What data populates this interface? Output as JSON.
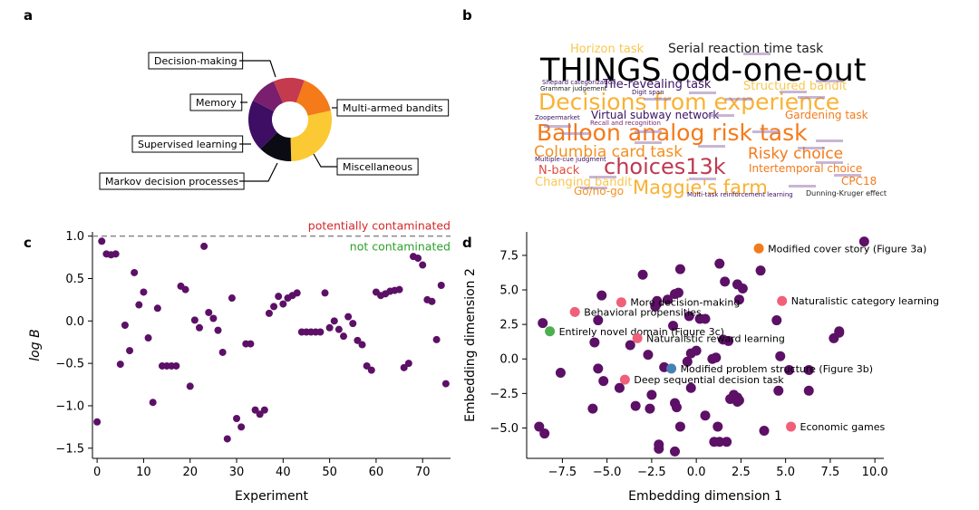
{
  "panels": {
    "a": "a",
    "b": "b",
    "c": "c",
    "d": "d"
  },
  "chart_data": [
    {
      "type": "pie",
      "panel": "a",
      "style": "donut",
      "slices": [
        {
          "label": "Decision-making",
          "value": 16,
          "color": "#f47a1a"
        },
        {
          "label": "Multi-armed bandits",
          "value": 28,
          "color": "#fac933"
        },
        {
          "label": "Miscellaneous",
          "value": 13,
          "color": "#0b0b14"
        },
        {
          "label": "Markov decision processes",
          "value": 20,
          "color": "#3d0e63"
        },
        {
          "label": "Supervised learning",
          "value": 11,
          "color": "#7a1f6d"
        },
        {
          "label": "Memory",
          "value": 12,
          "color": "#c53a4c"
        }
      ]
    },
    {
      "type": "wordcloud",
      "panel": "b",
      "words": [
        {
          "text": "Horizon task",
          "color": "#f9c74f"
        },
        {
          "text": "Serial reaction time task",
          "color": "#222222"
        },
        {
          "text": "THINGS odd-one-out",
          "color": "#000000"
        },
        {
          "text": "Tile-revealing task",
          "color": "#3b1062"
        },
        {
          "text": "Structured bandit",
          "color": "#f9c74f"
        },
        {
          "text": "Decisions from experience",
          "color": "#f9b233"
        },
        {
          "text": "Virtual subway network",
          "color": "#3b1062"
        },
        {
          "text": "Gardening task",
          "color": "#f47a1a"
        },
        {
          "text": "Balloon analog risk task",
          "color": "#f47a1a"
        },
        {
          "text": "Columbia card task",
          "color": "#f4901e"
        },
        {
          "text": "Risky choice",
          "color": "#f47a1a"
        },
        {
          "text": "choices13k",
          "color": "#bf3a52"
        },
        {
          "text": "Intertemporal choice",
          "color": "#f47a1a"
        },
        {
          "text": "N-back",
          "color": "#e14b3c"
        },
        {
          "text": "CPC18",
          "color": "#f47a1a"
        },
        {
          "text": "Changing bandit",
          "color": "#f9c74f"
        },
        {
          "text": "Maggie's farm",
          "color": "#f9b233"
        },
        {
          "text": "Go/no-go",
          "color": "#f4901e"
        },
        {
          "text": "Dunning-Kruger effect",
          "color": "#222222"
        },
        {
          "text": "Multi-task reinforcement learning",
          "color": "#3b1062"
        },
        {
          "text": "Grammar judgement",
          "color": "#222222"
        },
        {
          "text": "Shepard categorization",
          "color": "#3b1062"
        },
        {
          "text": "Digit span",
          "color": "#3b1062"
        },
        {
          "text": "Zoopermarket",
          "color": "#3b1062"
        },
        {
          "text": "Recall and recognition",
          "color": "#7a1f6d"
        },
        {
          "text": "Multiple-cue judgment",
          "color": "#3b1062"
        }
      ]
    },
    {
      "type": "scatter",
      "panel": "c",
      "xlabel": "Experiment",
      "ylabel": "log B",
      "xlim": [
        -1,
        76
      ],
      "ylim": [
        -1.62,
        1.05
      ],
      "xticks": [
        0,
        10,
        20,
        30,
        40,
        50,
        60,
        70
      ],
      "yticks": [
        1.0,
        0.5,
        0.0,
        -0.5,
        -1.0,
        -1.5
      ],
      "ytick_labels": [
        "1.0",
        "0.5",
        "0.0",
        "−0.5",
        "−1.0",
        "−1.5"
      ],
      "threshold": 1.0,
      "threshold_label_above": "potentially contaminated",
      "threshold_label_below": "not contaminated",
      "color": "#5c1066",
      "points": [
        [
          0,
          -1.19
        ],
        [
          1,
          0.94
        ],
        [
          2,
          0.79
        ],
        [
          3,
          0.78
        ],
        [
          4,
          0.79
        ],
        [
          5,
          -0.51
        ],
        [
          6,
          -0.05
        ],
        [
          7,
          -0.35
        ],
        [
          8,
          0.57
        ],
        [
          9,
          0.19
        ],
        [
          10,
          0.34
        ],
        [
          11,
          -0.2
        ],
        [
          12,
          -0.96
        ],
        [
          13,
          0.15
        ],
        [
          14,
          -0.53
        ],
        [
          15,
          -0.53
        ],
        [
          16,
          -0.53
        ],
        [
          17,
          -0.53
        ],
        [
          18,
          0.41
        ],
        [
          19,
          0.37
        ],
        [
          20,
          -0.77
        ],
        [
          21,
          0.01
        ],
        [
          22,
          -0.08
        ],
        [
          23,
          0.88
        ],
        [
          24,
          0.1
        ],
        [
          25,
          0.03
        ],
        [
          26,
          -0.11
        ],
        [
          27,
          -0.37
        ],
        [
          28,
          -1.39
        ],
        [
          29,
          0.27
        ],
        [
          30,
          -1.15
        ],
        [
          31,
          -1.25
        ],
        [
          32,
          -0.27
        ],
        [
          33,
          -0.27
        ],
        [
          34,
          -1.05
        ],
        [
          35,
          -1.1
        ],
        [
          36,
          -1.05
        ],
        [
          37,
          0.09
        ],
        [
          38,
          0.17
        ],
        [
          39,
          0.29
        ],
        [
          40,
          0.2
        ],
        [
          41,
          0.27
        ],
        [
          42,
          0.3
        ],
        [
          43,
          0.33
        ],
        [
          44,
          -0.13
        ],
        [
          45,
          -0.13
        ],
        [
          46,
          -0.13
        ],
        [
          47,
          -0.13
        ],
        [
          48,
          -0.13
        ],
        [
          49,
          0.33
        ],
        [
          50,
          -0.08
        ],
        [
          51,
          0.0
        ],
        [
          52,
          -0.1
        ],
        [
          53,
          -0.18
        ],
        [
          54,
          0.05
        ],
        [
          55,
          -0.03
        ],
        [
          56,
          -0.23
        ],
        [
          57,
          -0.28
        ],
        [
          58,
          -0.53
        ],
        [
          59,
          -0.58
        ],
        [
          60,
          0.34
        ],
        [
          61,
          0.3
        ],
        [
          62,
          0.32
        ],
        [
          63,
          0.35
        ],
        [
          64,
          0.36
        ],
        [
          65,
          0.37
        ],
        [
          66,
          -0.55
        ],
        [
          67,
          -0.5
        ],
        [
          68,
          0.76
        ],
        [
          69,
          0.74
        ],
        [
          70,
          0.66
        ],
        [
          71,
          0.25
        ],
        [
          72,
          0.23
        ],
        [
          73,
          -0.22
        ],
        [
          74,
          0.42
        ],
        [
          75,
          -0.74
        ]
      ]
    },
    {
      "type": "scatter",
      "panel": "d",
      "xlabel": "Embedding dimension 1",
      "ylabel": "Embedding dimension 2",
      "xlim": [
        -9.5,
        10.5
      ],
      "ylim": [
        -7.2,
        9.2
      ],
      "xticks": [
        -7.5,
        -5.0,
        -2.5,
        0.0,
        2.5,
        5.0,
        7.5,
        10.0
      ],
      "xtick_labels": [
        "−7.5",
        "−5.0",
        "−2.5",
        "0.0",
        "2.5",
        "5.0",
        "7.5",
        "10.0"
      ],
      "yticks": [
        7.5,
        5.0,
        2.5,
        0.0,
        -2.5,
        -5.0
      ],
      "ytick_labels": [
        "7.5",
        "5.0",
        "2.5",
        "0.0",
        "−2.5",
        "−5.0"
      ],
      "base_color": "#5c1066",
      "points": [
        [
          9.4,
          8.5
        ],
        [
          3.6,
          6.4
        ],
        [
          1.3,
          6.9
        ],
        [
          1.6,
          5.6
        ],
        [
          2.3,
          5.4
        ],
        [
          2.6,
          5.1
        ],
        [
          2.4,
          4.3
        ],
        [
          -0.9,
          6.5
        ],
        [
          -3.0,
          6.1
        ],
        [
          -5.3,
          4.6
        ],
        [
          -1.2,
          4.7
        ],
        [
          -1.0,
          4.8
        ],
        [
          -1.6,
          4.3
        ],
        [
          -2.2,
          4.0
        ],
        [
          -2.2,
          4.2
        ],
        [
          -2.3,
          3.8
        ],
        [
          -0.4,
          3.1
        ],
        [
          0.2,
          2.9
        ],
        [
          0.5,
          2.9
        ],
        [
          -1.3,
          2.4
        ],
        [
          1.5,
          1.4
        ],
        [
          1.8,
          1.3
        ],
        [
          -5.5,
          2.8
        ],
        [
          -8.6,
          2.6
        ],
        [
          -3.7,
          1.0
        ],
        [
          -5.7,
          1.2
        ],
        [
          -2.7,
          0.3
        ],
        [
          1.1,
          0.1
        ],
        [
          0.9,
          0.0
        ],
        [
          4.7,
          0.2
        ],
        [
          5.2,
          -0.8
        ],
        [
          6.3,
          -0.8
        ],
        [
          -5.5,
          -0.7
        ],
        [
          -7.6,
          -1.0
        ],
        [
          -5.2,
          -1.6
        ],
        [
          -4.3,
          -2.1
        ],
        [
          -1.8,
          -0.6
        ],
        [
          -0.3,
          -2.1
        ],
        [
          -2.5,
          -2.6
        ],
        [
          -3.4,
          -3.4
        ],
        [
          -2.6,
          -3.6
        ],
        [
          -1.2,
          -3.2
        ],
        [
          -1.1,
          -3.5
        ],
        [
          2.1,
          -2.6
        ],
        [
          1.9,
          -2.9
        ],
        [
          2.3,
          -2.8
        ],
        [
          2.4,
          -3.0
        ],
        [
          4.6,
          -2.3
        ],
        [
          6.3,
          -2.3
        ],
        [
          4.5,
          2.8
        ],
        [
          7.7,
          1.5
        ],
        [
          8.0,
          2.0
        ],
        [
          -5.8,
          -3.6
        ],
        [
          -8.8,
          -4.9
        ],
        [
          -8.5,
          -5.4
        ],
        [
          -0.9,
          -4.9
        ],
        [
          1.2,
          -4.9
        ],
        [
          3.8,
          -5.2
        ],
        [
          1.3,
          -6.0
        ],
        [
          1.7,
          -6.0
        ],
        [
          1.0,
          -6.0
        ],
        [
          -2.1,
          -6.2
        ],
        [
          -2.1,
          -6.5
        ],
        [
          -1.2,
          -6.7
        ],
        [
          0.5,
          -4.1
        ],
        [
          2.3,
          -3.1
        ],
        [
          0.0,
          0.6
        ],
        [
          -0.3,
          0.4
        ],
        [
          -0.5,
          -0.2
        ],
        [
          8.0,
          1.9
        ]
      ],
      "highlighted": [
        {
          "label": "Modified cover story (Figure 3a)",
          "x": 3.5,
          "y": 8.0,
          "color": "#f47a1a"
        },
        {
          "label": "More decision-making",
          "x": -4.2,
          "y": 4.1,
          "color": "#f06078"
        },
        {
          "label": "Naturalistic category learning",
          "x": 4.8,
          "y": 4.2,
          "color": "#f06078"
        },
        {
          "label": "Behavioral propensities",
          "x": -6.8,
          "y": 3.4,
          "color": "#f06078"
        },
        {
          "label": "Entirely novel domain (Figure 3c)",
          "x": -8.2,
          "y": 2.0,
          "color": "#4caf50"
        },
        {
          "label": "Naturalistic reward learning",
          "x": -3.3,
          "y": 1.5,
          "color": "#f06078"
        },
        {
          "label": "Modified problem structure (Figure 3b)",
          "x": -1.4,
          "y": -0.7,
          "color": "#4682b4"
        },
        {
          "label": "Deep sequential decision task",
          "x": -4.0,
          "y": -1.5,
          "color": "#f06078"
        },
        {
          "label": "Economic games",
          "x": 5.3,
          "y": -4.9,
          "color": "#f06078"
        }
      ]
    }
  ]
}
